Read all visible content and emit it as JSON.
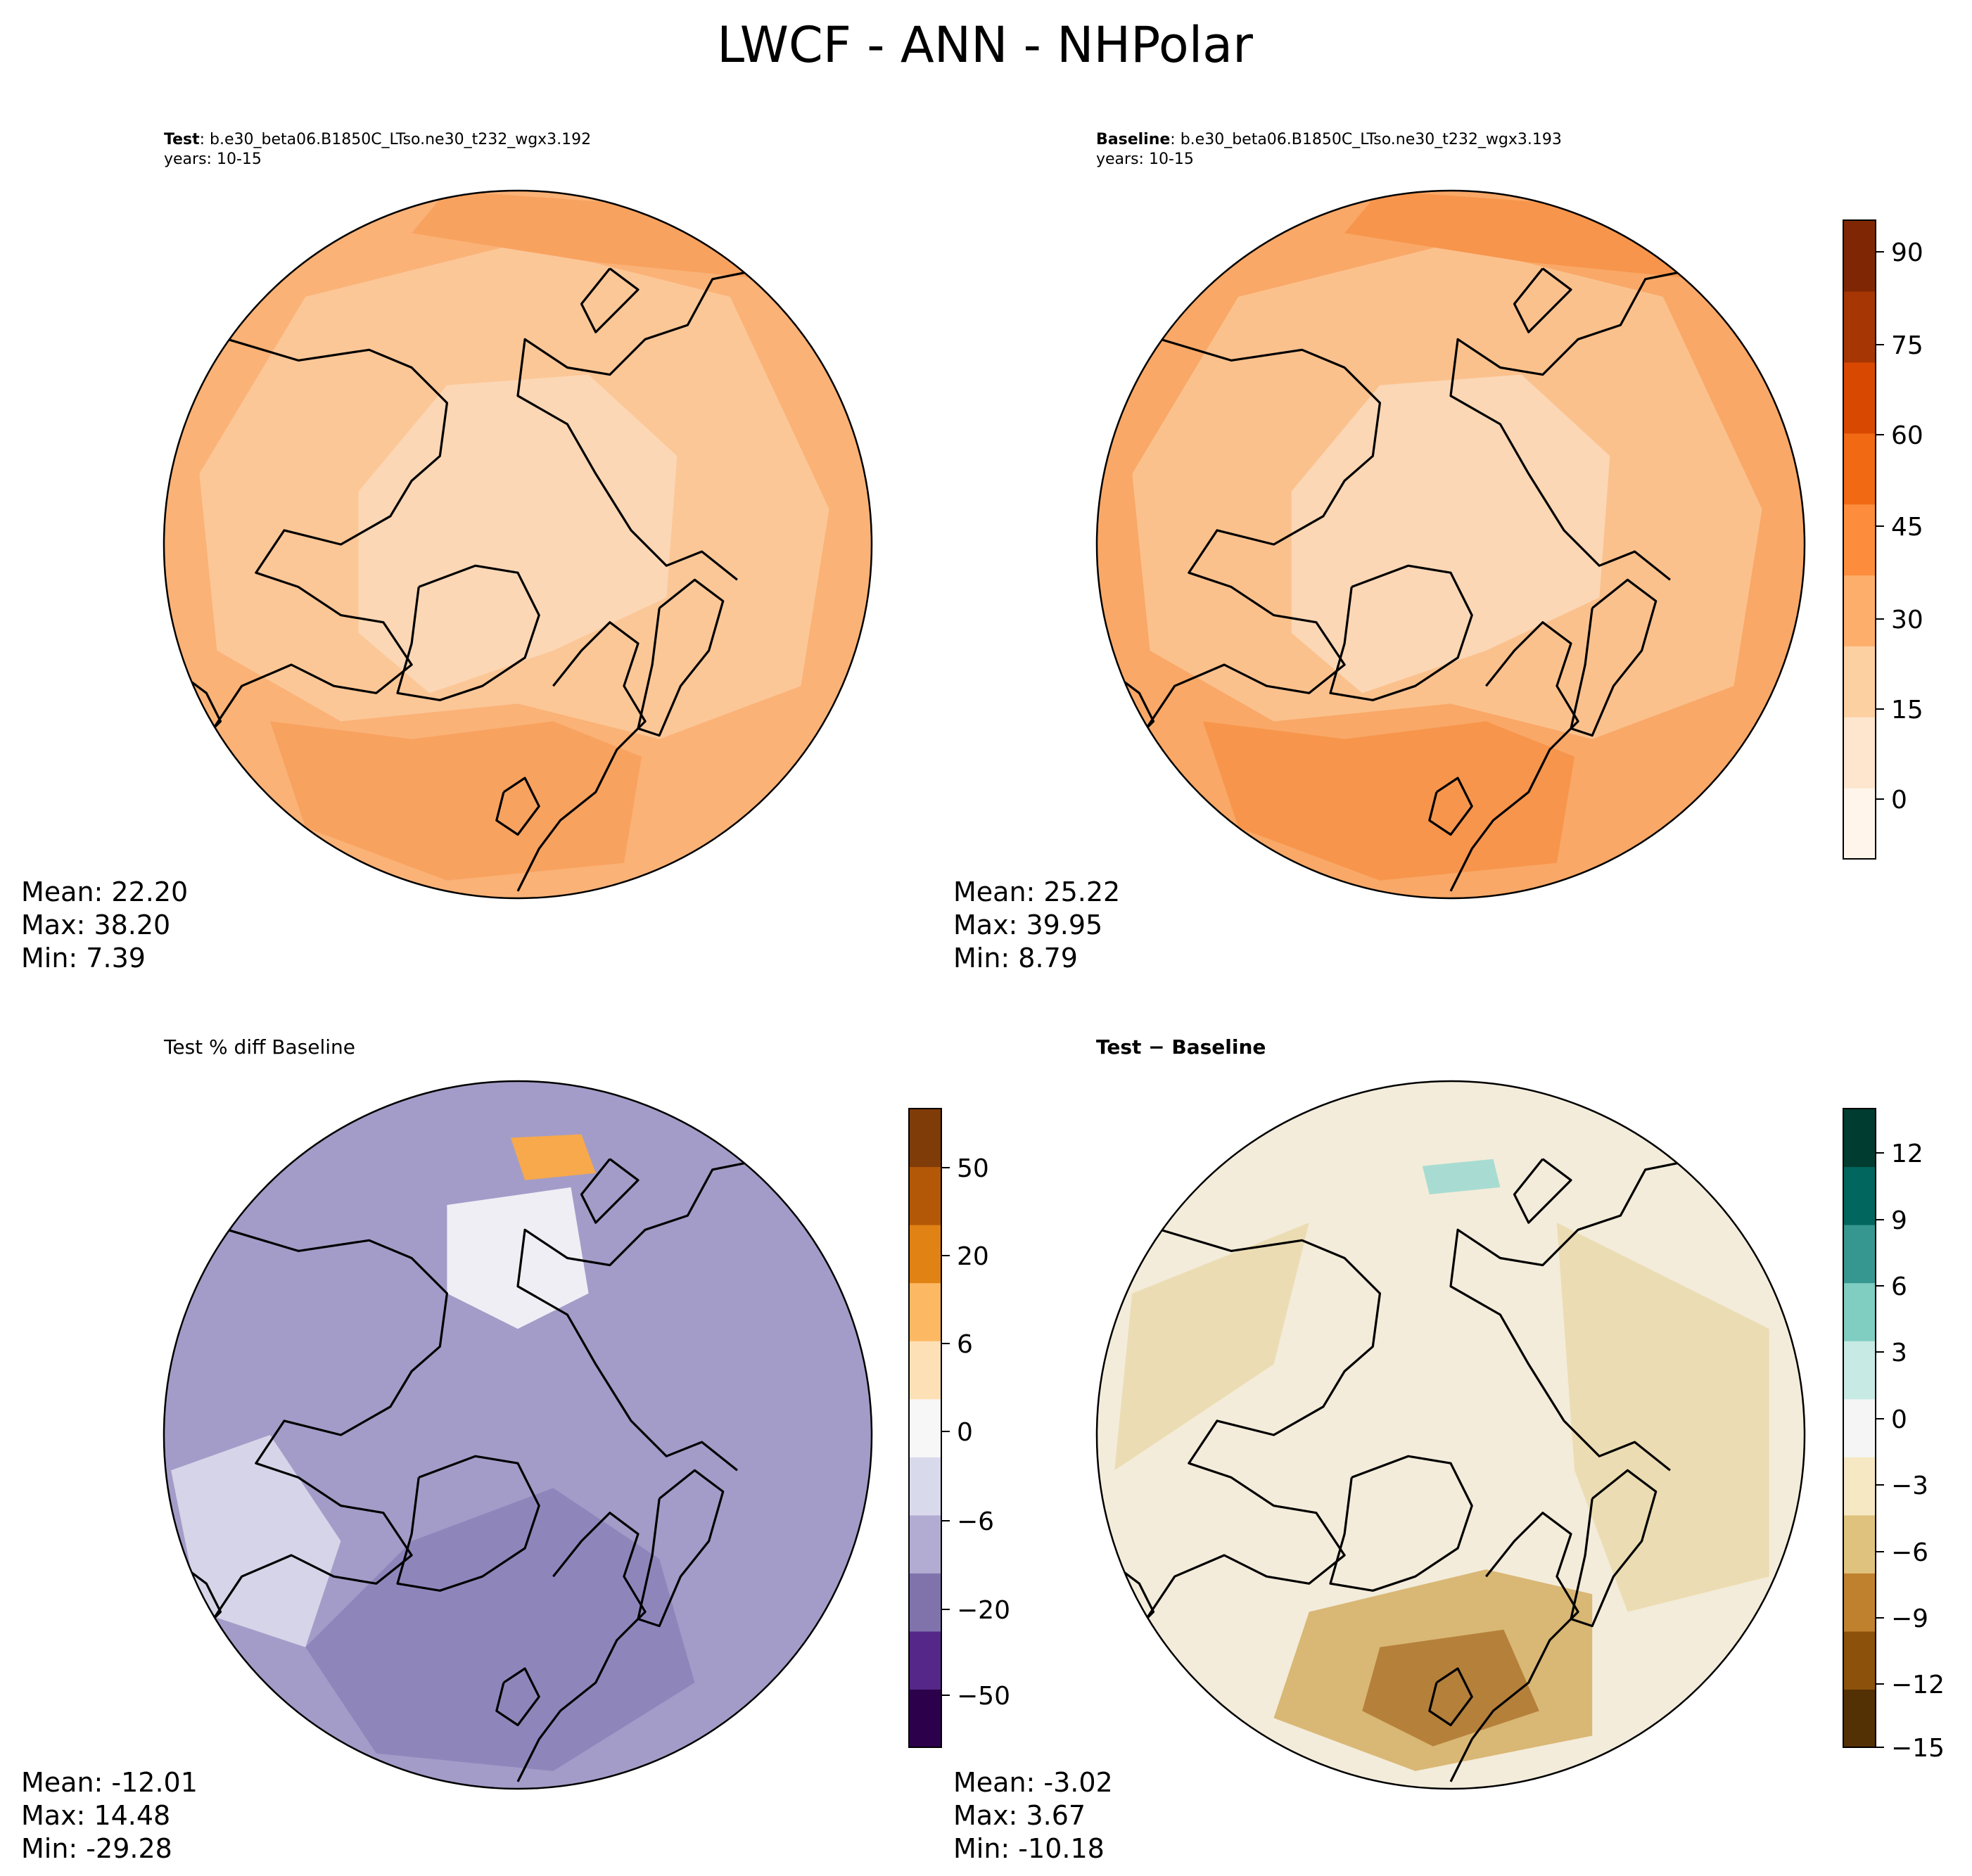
{
  "figure": {
    "title": "LWCF - ANN - NHPolar"
  },
  "chart_data": [
    {
      "type": "heatmap",
      "panel": "top-left",
      "projection": "north-polar-stereographic",
      "title_bold": "Test",
      "title_rest": ": b.e30_beta06.B1850C_LTso.ne30_t232_wgx3.192",
      "title_line2": "years: 10-15",
      "stats": {
        "mean": "Mean: 22.20",
        "max": "Max: 38.20",
        "min": "Min:  7.39"
      },
      "colormap": "Oranges",
      "shares_colorbar_with": "top-right",
      "fill_colors": [
        "#fbd7b5",
        "#fcc797",
        "#fab277",
        "#f8a25f"
      ]
    },
    {
      "type": "heatmap",
      "panel": "top-right",
      "projection": "north-polar-stereographic",
      "title_bold": "Baseline",
      "title_rest": ": b.e30_beta06.B1850C_LTso.ne30_t232_wgx3.193",
      "title_line2": "years: 10-15",
      "stats": {
        "mean": "Mean: 25.22",
        "max": "Max: 39.95",
        "min": "Min:  8.79"
      },
      "colormap": "Oranges",
      "fill_colors": [
        "#fbd7b5",
        "#fbc18d",
        "#f9a867",
        "#f7954c"
      ],
      "colorbar": {
        "ticks": [
          -15,
          0,
          15,
          30,
          45,
          60,
          75,
          90
        ],
        "tick_labels": [
          "0",
          "15",
          "30",
          "45",
          "60",
          "75",
          "90"
        ],
        "range": [
          -7,
          95
        ],
        "colors": [
          "#fff5eb",
          "#fee6ce",
          "#fdd0a2",
          "#fdae6b",
          "#fd8d3c",
          "#f16913",
          "#d94801",
          "#a63603",
          "#7f2704"
        ]
      }
    },
    {
      "type": "heatmap",
      "panel": "bottom-left",
      "projection": "north-polar-stereographic",
      "title_plain": "Test % diff Baseline",
      "stats": {
        "mean": "Mean: -12.01",
        "max": "Max: 14.48",
        "min": "Min: -29.28"
      },
      "colormap": "PuOr_r",
      "fill_colors": [
        "#a39cc8",
        "#8e86bb",
        "#d6d4e8",
        "#eeeef4",
        "#f7a94b"
      ],
      "colorbar": {
        "tick_labels": [
          "50",
          "20",
          "6",
          "0",
          "−6",
          "−20",
          "−50"
        ],
        "colors": [
          "#2d004b",
          "#542788",
          "#8073ac",
          "#b2abd2",
          "#d8daeb",
          "#f7f7f7",
          "#fee0b6",
          "#fdb863",
          "#e08214",
          "#b35806",
          "#7f3b08"
        ]
      }
    },
    {
      "type": "heatmap",
      "panel": "bottom-right",
      "projection": "north-polar-stereographic",
      "title_bold": "Test − Baseline",
      "stats": {
        "mean": "Mean: -3.02",
        "max": "Max:  3.67",
        "min": "Min: -10.18"
      },
      "colormap": "BrBG",
      "fill_colors": [
        "#f3ecda",
        "#ebdcb3",
        "#d9b775",
        "#b5803a",
        "#a8dcd2"
      ],
      "colorbar": {
        "tick_labels": [
          "12",
          "9",
          "6",
          "3",
          "0",
          "−3",
          "−6",
          "−9",
          "−12",
          "−15"
        ],
        "colors": [
          "#543005",
          "#8c510a",
          "#bf812d",
          "#dfc27d",
          "#f6e8c3",
          "#f5f5f5",
          "#c7eae5",
          "#80cdc1",
          "#35978f",
          "#01665e",
          "#003c30"
        ]
      }
    }
  ]
}
